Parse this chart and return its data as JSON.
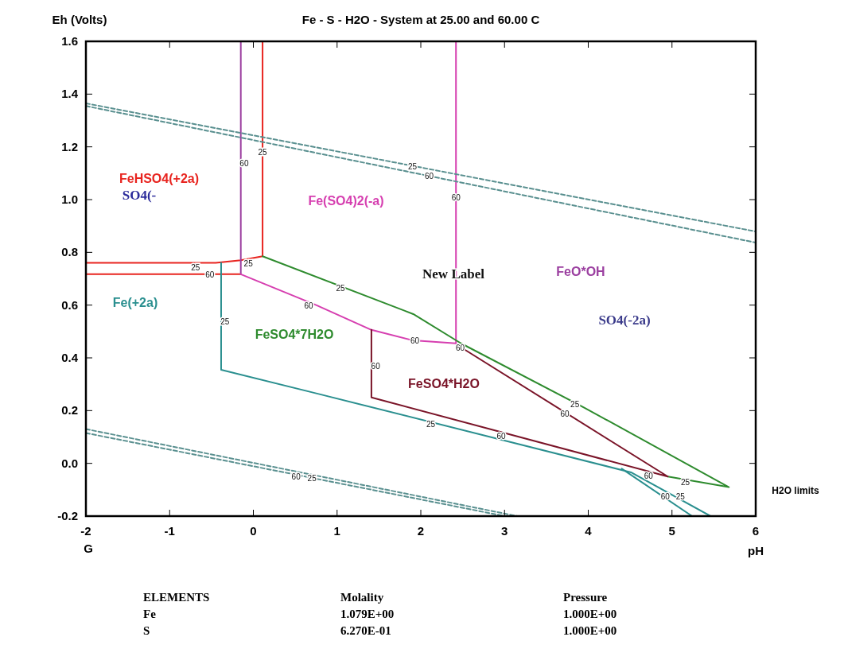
{
  "chart_data": {
    "type": "line",
    "title": "Fe - S - H2O - System at 25.00 and 60.00 C",
    "xlabel": "pH",
    "ylabel": "Eh (Volts)",
    "xlim": [
      -2,
      6
    ],
    "xticks": [
      -2,
      -1,
      0,
      1,
      2,
      3,
      4,
      5,
      6
    ],
    "ylim": [
      -0.2,
      1.6
    ],
    "yticks": [
      {
        "value": -0.2,
        "label": "-0.2"
      },
      {
        "value": 0,
        "label": "0.0"
      },
      {
        "value": 0.2,
        "label": "0.2"
      },
      {
        "value": 0.4,
        "label": "0.4"
      },
      {
        "value": 0.6,
        "label": "0.6"
      },
      {
        "value": 0.8,
        "label": "0.8"
      },
      {
        "value": 1.0,
        "label": "1.0"
      },
      {
        "value": 1.2,
        "label": "1.2"
      },
      {
        "value": 1.4,
        "label": "1.4"
      },
      {
        "value": 1.6,
        "label": "1.6"
      }
    ],
    "grid": false,
    "series": [
      {
        "color": "#e8241f",
        "x": [
          -2,
          -0.45,
          -0.15,
          0.11,
          0.11
        ],
        "values": [
          0.76,
          0.76,
          0.77,
          0.785,
          1.6
        ]
      },
      {
        "color": "#e8241f",
        "x": [
          -2,
          -0.15
        ],
        "values": [
          0.717,
          0.717
        ]
      },
      {
        "color": "#9b3fa0",
        "x": [
          -0.15,
          -0.15
        ],
        "values": [
          0.717,
          1.6
        ]
      },
      {
        "color": "#d63fb0",
        "x": [
          -0.15,
          0.75,
          1.41,
          1.91,
          2.42
        ],
        "values": [
          0.717,
          0.6,
          0.506,
          0.466,
          0.455
        ]
      },
      {
        "color": "#d63fb0",
        "x": [
          2.42,
          2.42
        ],
        "values": [
          0.455,
          1.6
        ]
      },
      {
        "color": "#2e8b2e",
        "x": [
          0.11,
          1.91,
          2.48,
          3.96,
          5.68,
          4.95
        ],
        "values": [
          0.785,
          0.566,
          0.455,
          0.21,
          -0.09,
          -0.05
        ]
      },
      {
        "color": "#7a1428",
        "x": [
          1.41,
          1.41,
          4.95,
          2.48
        ],
        "values": [
          0.506,
          0.25,
          -0.05,
          0.44
        ]
      },
      {
        "color": "#2a8f8f",
        "x": [
          -0.385,
          -0.385,
          0.77,
          4.51,
          5.46
        ],
        "values": [
          0.76,
          0.355,
          0.264,
          -0.034,
          -0.2
        ]
      },
      {
        "color": "#2a8f8f",
        "x": [
          4.4,
          5.24
        ],
        "values": [
          -0.02,
          -0.2
        ]
      },
      {
        "color": "#5a9090",
        "line_style": "dashed",
        "x": [
          -2,
          6
        ],
        "values": [
          1.365,
          0.879
        ]
      },
      {
        "color": "#5a9090",
        "line_style": "dashed",
        "x": [
          -2,
          6
        ],
        "values": [
          1.355,
          0.837
        ]
      },
      {
        "color": "#5a9090",
        "line_style": "dashed",
        "x": [
          -2,
          3.15
        ],
        "values": [
          0.13,
          -0.2
        ]
      },
      {
        "color": "#5a9090",
        "line_style": "dashed",
        "x": [
          -2,
          3.0
        ],
        "values": [
          0.115,
          -0.2
        ]
      }
    ],
    "annotations": [
      "FeHSO4(+2a)",
      "SO4(-",
      "Fe(SO4)2(-a)",
      "New Label",
      "FeO*OH",
      "SO4(-2a)",
      "Fe(+2a)",
      "FeSO4*7H2O",
      "FeSO4*H2O",
      {
        "text": "25",
        "x": -0.69,
        "y": 0.745
      },
      {
        "text": "60",
        "x": -0.52,
        "y": 0.717
      },
      {
        "text": "25",
        "x": -0.06,
        "y": 0.76
      },
      {
        "text": "25",
        "x": 0.11,
        "y": 1.18
      },
      {
        "text": "60",
        "x": -0.11,
        "y": 1.14
      },
      {
        "text": "25",
        "x": 1.9,
        "y": 1.128
      },
      {
        "text": "60",
        "x": 2.1,
        "y": 1.09
      },
      {
        "text": "60",
        "x": 2.42,
        "y": 1.01
      },
      {
        "text": "25",
        "x": 1.04,
        "y": 0.665
      },
      {
        "text": "60",
        "x": 0.66,
        "y": 0.6
      },
      {
        "text": "25",
        "x": -0.34,
        "y": 0.54
      },
      {
        "text": "60",
        "x": 1.93,
        "y": 0.467
      },
      {
        "text": "60",
        "x": 2.47,
        "y": 0.44
      },
      {
        "text": "60",
        "x": 1.46,
        "y": 0.37
      },
      {
        "text": "25",
        "x": 2.12,
        "y": 0.15
      },
      {
        "text": "60",
        "x": 2.96,
        "y": 0.105
      },
      {
        "text": "25",
        "x": 3.84,
        "y": 0.225
      },
      {
        "text": "60",
        "x": 3.72,
        "y": 0.19
      },
      {
        "text": "25",
        "x": 5.16,
        "y": -0.07
      },
      {
        "text": "60",
        "x": 4.72,
        "y": -0.045
      },
      {
        "text": "60",
        "x": 4.92,
        "y": -0.125
      },
      {
        "text": "25",
        "x": 5.1,
        "y": -0.125
      },
      {
        "text": "60",
        "x": 0.51,
        "y": -0.05
      },
      {
        "text": "25",
        "x": 0.7,
        "y": -0.055
      },
      "H2O limits",
      "G",
      "ELEMENTS",
      "Molality",
      "Pressure",
      "Fe",
      "1.079E+00",
      "1.000E+00",
      "S",
      "6.270E-01",
      "1.000E+00"
    ]
  }
}
